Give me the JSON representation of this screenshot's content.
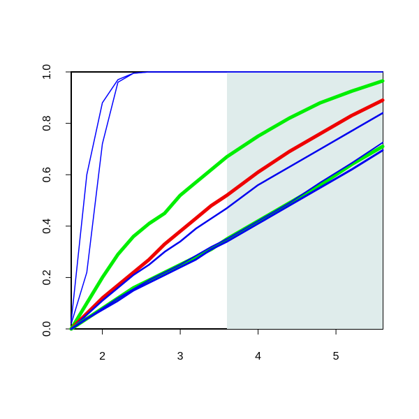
{
  "chart_data": {
    "type": "line",
    "x": [
      1.6,
      1.8,
      2.0,
      2.2,
      2.4,
      2.6,
      2.8,
      3.0,
      3.2,
      3.4,
      3.6,
      4.0,
      4.4,
      4.8,
      5.2,
      5.6
    ],
    "series": [
      {
        "color": "#0000ff",
        "linewidth": 1.5,
        "values": [
          0.03,
          0.6,
          0.88,
          0.97,
          0.995,
          1,
          1,
          1,
          1,
          1,
          1,
          1,
          1,
          1,
          1,
          1
        ]
      },
      {
        "color": "#0000ff",
        "linewidth": 1.5,
        "values": [
          0.02,
          0.22,
          0.72,
          0.96,
          0.995,
          1,
          1,
          1,
          1,
          1,
          1,
          1,
          1,
          1,
          1,
          1
        ]
      },
      {
        "color": "#00ee00",
        "linewidth": 5,
        "values": [
          0,
          0.1,
          0.2,
          0.29,
          0.36,
          0.41,
          0.45,
          0.52,
          0.57,
          0.62,
          0.67,
          0.75,
          0.82,
          0.88,
          0.925,
          0.965
        ]
      },
      {
        "color": "#ee0000",
        "linewidth": 5,
        "values": [
          0,
          0.06,
          0.12,
          0.17,
          0.22,
          0.27,
          0.33,
          0.38,
          0.43,
          0.48,
          0.52,
          0.61,
          0.69,
          0.76,
          0.83,
          0.89
        ]
      },
      {
        "color": "#0000ee",
        "linewidth": 2.5,
        "values": [
          0,
          0.055,
          0.11,
          0.16,
          0.21,
          0.25,
          0.3,
          0.34,
          0.39,
          0.43,
          0.47,
          0.56,
          0.63,
          0.7,
          0.77,
          0.84
        ]
      },
      {
        "color": "#00ee00",
        "linewidth": 5,
        "values": [
          0,
          0.04,
          0.08,
          0.12,
          0.16,
          0.19,
          0.22,
          0.25,
          0.28,
          0.31,
          0.35,
          0.42,
          0.49,
          0.56,
          0.64,
          0.71
        ]
      },
      {
        "color": "#0000ee",
        "linewidth": 3,
        "values": [
          0,
          0.04,
          0.075,
          0.11,
          0.15,
          0.18,
          0.21,
          0.24,
          0.27,
          0.31,
          0.34,
          0.41,
          0.48,
          0.55,
          0.62,
          0.695
        ]
      },
      {
        "color": "#0000ee",
        "linewidth": 2,
        "values": [
          0,
          0.04,
          0.08,
          0.12,
          0.155,
          0.19,
          0.22,
          0.25,
          0.285,
          0.32,
          0.35,
          0.42,
          0.49,
          0.57,
          0.645,
          0.725
        ]
      }
    ],
    "shaded_region": {
      "xmin": 3.6,
      "xmax": 5.6,
      "color": "#dfeceb"
    },
    "xlim": [
      1.6,
      5.6
    ],
    "xticks": [
      2,
      3,
      4,
      5
    ],
    "ylim": [
      0,
      1
    ],
    "yticks": [
      {
        "value": 0,
        "label": "0.0"
      },
      {
        "value": 0.2,
        "label": "0.2"
      },
      {
        "value": 0.4,
        "label": "0.4"
      },
      {
        "value": 0.6,
        "label": "0.6"
      },
      {
        "value": 0.8,
        "label": "0.8"
      },
      {
        "value": 1,
        "label": "1.0"
      }
    ]
  }
}
